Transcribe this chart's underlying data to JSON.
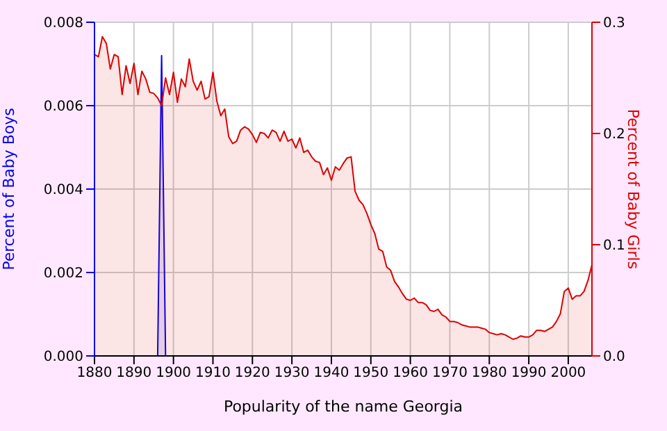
{
  "chart_data": {
    "type": "area",
    "xlabel": "Popularity of the name Georgia",
    "ylabel": "Percent of Baby Boys",
    "y2label": "Percent of Baby Girls",
    "xlim": [
      1880,
      2006
    ],
    "xticks": [
      1880,
      1890,
      1900,
      1910,
      1920,
      1930,
      1940,
      1950,
      1960,
      1970,
      1980,
      1990,
      2000
    ],
    "ylim": [
      0,
      0.008
    ],
    "yticks": [
      {
        "value": 0,
        "label": "0.000"
      },
      {
        "value": 0.002,
        "label": "0.002"
      },
      {
        "value": 0.004,
        "label": "0.004"
      },
      {
        "value": 0.006,
        "label": "0.006"
      },
      {
        "value": 0.008,
        "label": "0.008"
      }
    ],
    "y2lim": [
      0,
      0.3
    ],
    "y2ticks": [
      {
        "value": 0,
        "label": "0.0"
      },
      {
        "value": 0.1,
        "label": "0.1"
      },
      {
        "value": 0.2,
        "label": "0.2"
      },
      {
        "value": 0.3,
        "label": "0.3"
      }
    ],
    "grid": true,
    "legend": false,
    "marker": "none",
    "series": [
      {
        "color": "#0000ee",
        "x": [
          1880,
          1896,
          1897,
          1898,
          2006
        ],
        "values": [
          0,
          0,
          0.0072,
          0,
          0
        ]
      },
      {
        "color": "#dd0000",
        "axis": "y2",
        "x": [
          1880,
          1881,
          1882,
          1883,
          1884,
          1885,
          1886,
          1887,
          1888,
          1889,
          1890,
          1891,
          1892,
          1893,
          1894,
          1895,
          1896,
          1897,
          1898,
          1899,
          1900,
          1901,
          1902,
          1903,
          1904,
          1905,
          1906,
          1907,
          1908,
          1909,
          1910,
          1911,
          1912,
          1913,
          1914,
          1915,
          1916,
          1917,
          1918,
          1919,
          1920,
          1921,
          1922,
          1923,
          1924,
          1925,
          1926,
          1927,
          1928,
          1929,
          1930,
          1931,
          1932,
          1933,
          1934,
          1935,
          1936,
          1937,
          1938,
          1939,
          1940,
          1941,
          1942,
          1943,
          1944,
          1945,
          1946,
          1947,
          1948,
          1949,
          1950,
          1951,
          1952,
          1953,
          1954,
          1955,
          1956,
          1957,
          1958,
          1959,
          1960,
          1961,
          1962,
          1963,
          1964,
          1965,
          1966,
          1967,
          1968,
          1969,
          1970,
          1971,
          1972,
          1973,
          1974,
          1975,
          1976,
          1977,
          1978,
          1979,
          1980,
          1981,
          1982,
          1983,
          1984,
          1985,
          1986,
          1987,
          1988,
          1989,
          1990,
          1991,
          1992,
          1993,
          1994,
          1995,
          1996,
          1997,
          1998,
          1999,
          2000,
          2001,
          2002,
          2003,
          2004,
          2005,
          2006
        ],
        "values": [
          0.271,
          0.269,
          0.287,
          0.281,
          0.258,
          0.271,
          0.269,
          0.235,
          0.261,
          0.245,
          0.263,
          0.235,
          0.256,
          0.249,
          0.237,
          0.236,
          0.232,
          0.225,
          0.25,
          0.235,
          0.255,
          0.228,
          0.249,
          0.242,
          0.267,
          0.247,
          0.239,
          0.247,
          0.231,
          0.233,
          0.255,
          0.229,
          0.216,
          0.222,
          0.197,
          0.191,
          0.193,
          0.203,
          0.206,
          0.204,
          0.199,
          0.192,
          0.201,
          0.2,
          0.196,
          0.203,
          0.201,
          0.193,
          0.202,
          0.193,
          0.195,
          0.187,
          0.196,
          0.183,
          0.185,
          0.179,
          0.175,
          0.174,
          0.163,
          0.169,
          0.158,
          0.17,
          0.167,
          0.173,
          0.178,
          0.179,
          0.148,
          0.14,
          0.136,
          0.128,
          0.118,
          0.11,
          0.096,
          0.094,
          0.08,
          0.077,
          0.067,
          0.062,
          0.056,
          0.051,
          0.05,
          0.052,
          0.048,
          0.048,
          0.046,
          0.041,
          0.04,
          0.042,
          0.037,
          0.035,
          0.031,
          0.031,
          0.03,
          0.028,
          0.027,
          0.026,
          0.026,
          0.026,
          0.025,
          0.024,
          0.021,
          0.02,
          0.019,
          0.02,
          0.019,
          0.017,
          0.015,
          0.016,
          0.018,
          0.017,
          0.017,
          0.019,
          0.023,
          0.023,
          0.022,
          0.024,
          0.026,
          0.031,
          0.038,
          0.058,
          0.061,
          0.051,
          0.054,
          0.054,
          0.058,
          0.068,
          0.082
        ]
      }
    ]
  }
}
